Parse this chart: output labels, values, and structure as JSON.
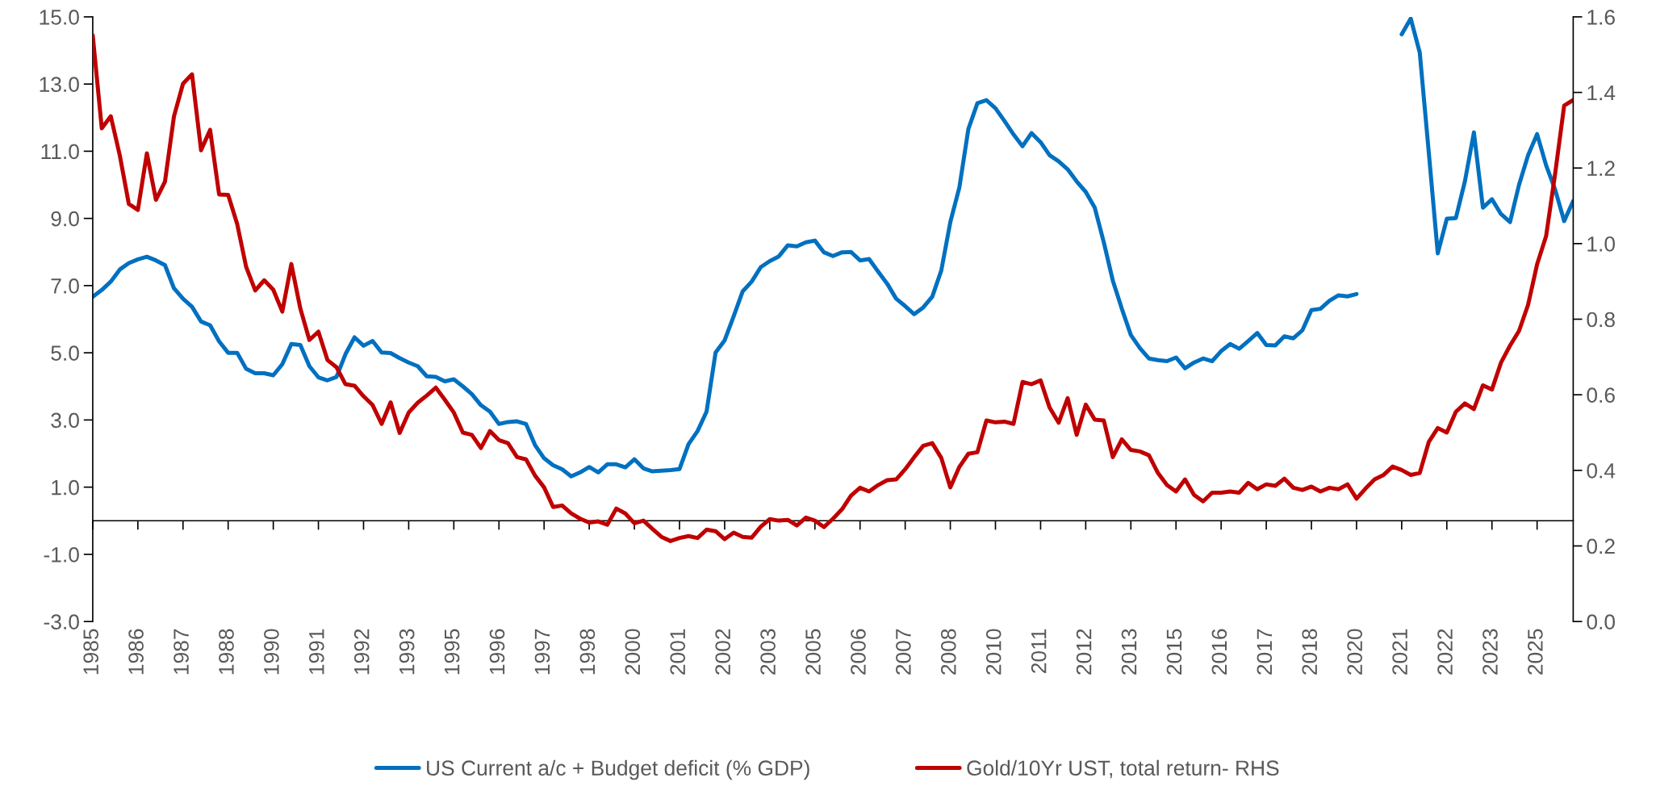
{
  "chart_data": {
    "type": "line",
    "categories": [
      "1985",
      null,
      null,
      null,
      null,
      "1986",
      null,
      null,
      null,
      null,
      "1987",
      null,
      null,
      null,
      null,
      "1988",
      null,
      null,
      null,
      null,
      "1990",
      null,
      null,
      null,
      null,
      "1991",
      null,
      null,
      null,
      null,
      "1992",
      null,
      null,
      null,
      null,
      "1993",
      null,
      null,
      null,
      null,
      "1995",
      null,
      null,
      null,
      null,
      "1996",
      null,
      null,
      null,
      null,
      "1997",
      null,
      null,
      null,
      null,
      "1998",
      null,
      null,
      null,
      null,
      "2000",
      null,
      null,
      null,
      null,
      "2001",
      null,
      null,
      null,
      null,
      "2002",
      null,
      null,
      null,
      null,
      "2003",
      null,
      null,
      null,
      null,
      "2005",
      null,
      null,
      null,
      null,
      "2006",
      null,
      null,
      null,
      null,
      "2007",
      null,
      null,
      null,
      null,
      "2008",
      null,
      null,
      null,
      null,
      "2010",
      null,
      null,
      null,
      null,
      "2011",
      null,
      null,
      null,
      null,
      "2012",
      null,
      null,
      null,
      null,
      "2013",
      null,
      null,
      null,
      null,
      "2015",
      null,
      null,
      null,
      null,
      "2016",
      null,
      null,
      null,
      null,
      "2017",
      null,
      null,
      null,
      null,
      "2018",
      null,
      null,
      null,
      null,
      "2020",
      null,
      null,
      null,
      null,
      "2021",
      null,
      null,
      null,
      null,
      "2022",
      null,
      null,
      null,
      null,
      "2023",
      null,
      null,
      null,
      null,
      "2025",
      null,
      null,
      null,
      null
    ],
    "series": [
      {
        "name": "US Current a/c + Budget deficit (% GDP)",
        "color": "#0070c0",
        "values": [
          6.67,
          6.87,
          7.12,
          7.48,
          7.67,
          7.78,
          7.86,
          7.75,
          7.61,
          6.92,
          6.61,
          6.37,
          5.93,
          5.82,
          5.34,
          5.0,
          5.0,
          4.52,
          4.39,
          4.39,
          4.33,
          4.66,
          5.26,
          5.23,
          4.6,
          4.27,
          4.18,
          4.28,
          4.96,
          5.46,
          5.21,
          5.35,
          5.01,
          4.99,
          4.84,
          4.71,
          4.6,
          4.3,
          4.28,
          4.15,
          4.21,
          4.0,
          3.77,
          3.44,
          3.25,
          2.88,
          2.94,
          2.96,
          2.88,
          2.25,
          1.86,
          1.65,
          1.53,
          1.32,
          1.44,
          1.6,
          1.44,
          1.68,
          1.68,
          1.59,
          1.83,
          1.56,
          1.47,
          1.49,
          1.51,
          1.54,
          2.28,
          2.67,
          3.25,
          5.01,
          5.37,
          6.09,
          6.83,
          7.12,
          7.55,
          7.73,
          7.87,
          8.2,
          8.17,
          8.29,
          8.34,
          7.99,
          7.88,
          7.99,
          8.0,
          7.75,
          7.79,
          7.42,
          7.06,
          6.61,
          6.39,
          6.15,
          6.35,
          6.67,
          7.45,
          8.89,
          9.92,
          11.66,
          12.43,
          12.52,
          12.28,
          11.9,
          11.5,
          11.15,
          11.54,
          11.27,
          10.88,
          10.7,
          10.46,
          10.1,
          9.79,
          9.32,
          8.29,
          7.15,
          6.31,
          5.53,
          5.14,
          4.83,
          4.78,
          4.75,
          4.86,
          4.54,
          4.71,
          4.83,
          4.75,
          5.05,
          5.26,
          5.12,
          5.35,
          5.59,
          5.23,
          5.22,
          5.49,
          5.43,
          5.67,
          6.27,
          6.31,
          6.55,
          6.71,
          6.68,
          6.75,
          null,
          null,
          null,
          null,
          14.48,
          14.95,
          13.94,
          10.97,
          7.96,
          8.99,
          9.01,
          10.1,
          11.56,
          9.32,
          9.57,
          9.13,
          8.89,
          10.0,
          10.88,
          11.51,
          10.58,
          9.86,
          8.92,
          9.52
        ]
      },
      {
        "name": "Gold/10Yr UST, total return- RHS",
        "color": "#c00000",
        "axis": "y2",
        "values": [
          1.551,
          1.305,
          1.337,
          1.233,
          1.105,
          1.089,
          1.239,
          1.116,
          1.164,
          1.337,
          1.423,
          1.448,
          1.247,
          1.301,
          1.13,
          1.129,
          1.052,
          0.938,
          0.876,
          0.903,
          0.878,
          0.82,
          0.946,
          0.828,
          0.745,
          0.767,
          0.692,
          0.673,
          0.628,
          0.624,
          0.596,
          0.573,
          0.523,
          0.58,
          0.499,
          0.553,
          0.579,
          0.598,
          0.619,
          0.587,
          0.553,
          0.5,
          0.494,
          0.459,
          0.504,
          0.48,
          0.472,
          0.435,
          0.429,
          0.386,
          0.355,
          0.303,
          0.307,
          0.286,
          0.272,
          0.262,
          0.265,
          0.256,
          0.299,
          0.286,
          0.26,
          0.267,
          0.245,
          0.224,
          0.213,
          0.221,
          0.226,
          0.221,
          0.243,
          0.239,
          0.218,
          0.235,
          0.224,
          0.222,
          0.251,
          0.271,
          0.267,
          0.269,
          0.254,
          0.275,
          0.267,
          0.25,
          0.272,
          0.297,
          0.333,
          0.354,
          0.344,
          0.361,
          0.374,
          0.376,
          0.403,
          0.435,
          0.465,
          0.472,
          0.433,
          0.355,
          0.409,
          0.444,
          0.448,
          0.532,
          0.527,
          0.529,
          0.523,
          0.634,
          0.628,
          0.638,
          0.566,
          0.526,
          0.591,
          0.494,
          0.574,
          0.534,
          0.532,
          0.435,
          0.482,
          0.454,
          0.45,
          0.44,
          0.393,
          0.361,
          0.344,
          0.376,
          0.335,
          0.318,
          0.341,
          0.341,
          0.344,
          0.341,
          0.367,
          0.35,
          0.363,
          0.359,
          0.378,
          0.354,
          0.348,
          0.357,
          0.344,
          0.354,
          0.35,
          0.363,
          0.325,
          0.352,
          0.376,
          0.388,
          0.41,
          0.401,
          0.388,
          0.393,
          0.475,
          0.512,
          0.5,
          0.555,
          0.577,
          0.562,
          0.625,
          0.614,
          0.685,
          0.73,
          0.769,
          0.838,
          0.945,
          1.02,
          1.185,
          1.365,
          1.38
        ]
      }
    ],
    "ylim": [
      -3,
      15
    ],
    "yticks": [
      {
        "value": -3,
        "label": "-3.0"
      },
      {
        "value": -1,
        "label": "-1.0"
      },
      {
        "value": 1,
        "label": "1.0"
      },
      {
        "value": 3,
        "label": "3.0"
      },
      {
        "value": 5,
        "label": "5.0"
      },
      {
        "value": 7,
        "label": "7.0"
      },
      {
        "value": 9,
        "label": "9.0"
      },
      {
        "value": 11,
        "label": "11.0"
      },
      {
        "value": 13,
        "label": "13.0"
      },
      {
        "value": 15,
        "label": "15.0"
      }
    ],
    "y2lim": [
      0,
      1.6
    ],
    "y2ticks": [
      {
        "value": 0,
        "label": "0.0"
      },
      {
        "value": 0.2,
        "label": "0.2"
      },
      {
        "value": 0.4,
        "label": "0.4"
      },
      {
        "value": 0.6,
        "label": "0.6"
      },
      {
        "value": 0.8,
        "label": "0.8"
      },
      {
        "value": 1.0,
        "label": "1.0"
      },
      {
        "value": 1.2,
        "label": "1.2"
      },
      {
        "value": 1.4,
        "label": "1.4"
      },
      {
        "value": 1.6,
        "label": "1.6"
      }
    ],
    "grid": false,
    "legend": "bottom",
    "marker": "none",
    "line_style": "solid"
  }
}
